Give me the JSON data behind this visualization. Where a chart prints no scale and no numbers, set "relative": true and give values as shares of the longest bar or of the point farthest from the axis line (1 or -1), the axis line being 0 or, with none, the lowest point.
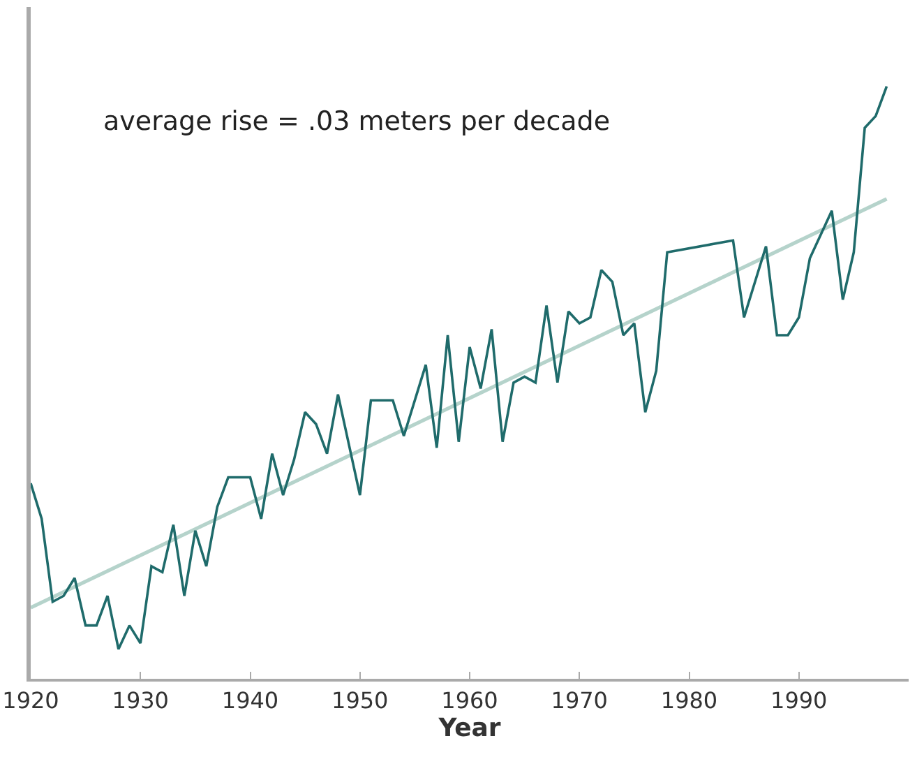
{
  "chart_data": {
    "type": "line",
    "xlabel": "Year",
    "relative": true,
    "annotations": [
      "average rise = .03 meters per decade"
    ],
    "xlim": [
      1920,
      2000
    ],
    "xticks": [
      1920,
      1930,
      1940,
      1950,
      1960,
      1970,
      1980,
      1990
    ],
    "tick_labels": "x",
    "grid": false,
    "marker": "none",
    "line_style": "solid",
    "series": [
      {
        "color": "#1f6b6b",
        "x": [
          1920,
          1921,
          1922,
          1923,
          1924,
          1925,
          1926,
          1927,
          1928,
          1929,
          1930,
          1931,
          1932,
          1933,
          1934,
          1935,
          1936,
          1937,
          1938,
          1939,
          1940,
          1941,
          1942,
          1943,
          1944,
          1945,
          1946,
          1947,
          1948,
          1950,
          1951,
          1953,
          1954,
          1956,
          1957,
          1958,
          1959,
          1960,
          1961,
          1962,
          1963,
          1964,
          1965,
          1966,
          1967,
          1968,
          1969,
          1970,
          1971,
          1972,
          1973,
          1974,
          1975,
          1976,
          1977,
          1978,
          1984,
          1985,
          1987,
          1988,
          1989,
          1990,
          1991,
          1992,
          1993,
          1994,
          1995,
          1996,
          1997,
          1998
        ],
        "values": [
          0.33,
          0.27,
          0.13,
          0.14,
          0.17,
          0.09,
          0.09,
          0.14,
          0.05,
          0.09,
          0.06,
          0.19,
          0.18,
          0.26,
          0.14,
          0.25,
          0.19,
          0.29,
          0.34,
          0.34,
          0.34,
          0.27,
          0.38,
          0.31,
          0.37,
          0.45,
          0.43,
          0.38,
          0.48,
          0.31,
          0.47,
          0.47,
          0.41,
          0.53,
          0.39,
          0.58,
          0.4,
          0.56,
          0.49,
          0.59,
          0.4,
          0.5,
          0.51,
          0.5,
          0.63,
          0.5,
          0.62,
          0.6,
          0.61,
          0.69,
          0.67,
          0.58,
          0.6,
          0.45,
          0.52,
          0.72,
          0.74,
          0.61,
          0.73,
          0.58,
          0.58,
          0.61,
          0.71,
          0.75,
          0.79,
          0.64,
          0.72,
          0.93,
          0.95,
          1.0
        ]
      },
      {
        "type": "line",
        "color": "#b5d3cb",
        "x": [
          1920,
          1998
        ],
        "values": [
          0.12,
          0.81
        ]
      }
    ]
  }
}
